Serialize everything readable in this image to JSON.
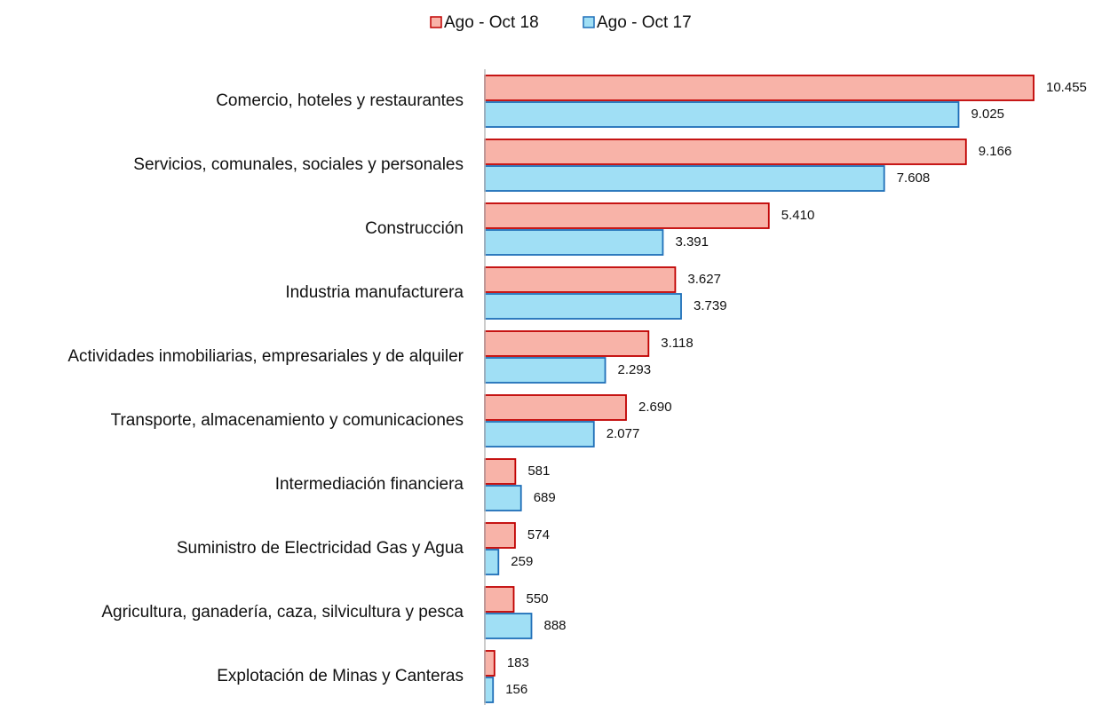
{
  "chart_data": {
    "type": "bar",
    "orientation": "horizontal",
    "categories": [
      "Comercio, hoteles y restaurantes",
      "Servicios, comunales, sociales y personales",
      "Construcción",
      "Industria manufacturera",
      "Actividades inmobiliarias, empresariales y de alquiler",
      "Transporte, almacenamiento y comunicaciones",
      "Intermediación financiera",
      "Suministro de Electricidad Gas y Agua",
      "Agricultura, ganadería, caza, silvicultura y pesca",
      "Explotación de Minas y Canteras"
    ],
    "series": [
      {
        "name": "Ago - Oct 18",
        "color": "#f8b3a8",
        "edge": "#c00000",
        "values": [
          10455,
          9166,
          5410,
          3627,
          3118,
          2690,
          581,
          574,
          550,
          183
        ],
        "value_labels": [
          "10.455",
          "9.166",
          "5.410",
          "3.627",
          "3.118",
          "2.690",
          "581",
          "574",
          "550",
          "183"
        ]
      },
      {
        "name": "Ago - Oct 17",
        "color": "#a0dff5",
        "edge": "#1f6fb8",
        "values": [
          9025,
          7608,
          3391,
          3739,
          2293,
          2077,
          689,
          259,
          888,
          156
        ],
        "value_labels": [
          "9.025",
          "7.608",
          "3.391",
          "3.739",
          "2.293",
          "2.077",
          "689",
          "259",
          "888",
          "156"
        ]
      }
    ],
    "legend": "top"
  }
}
